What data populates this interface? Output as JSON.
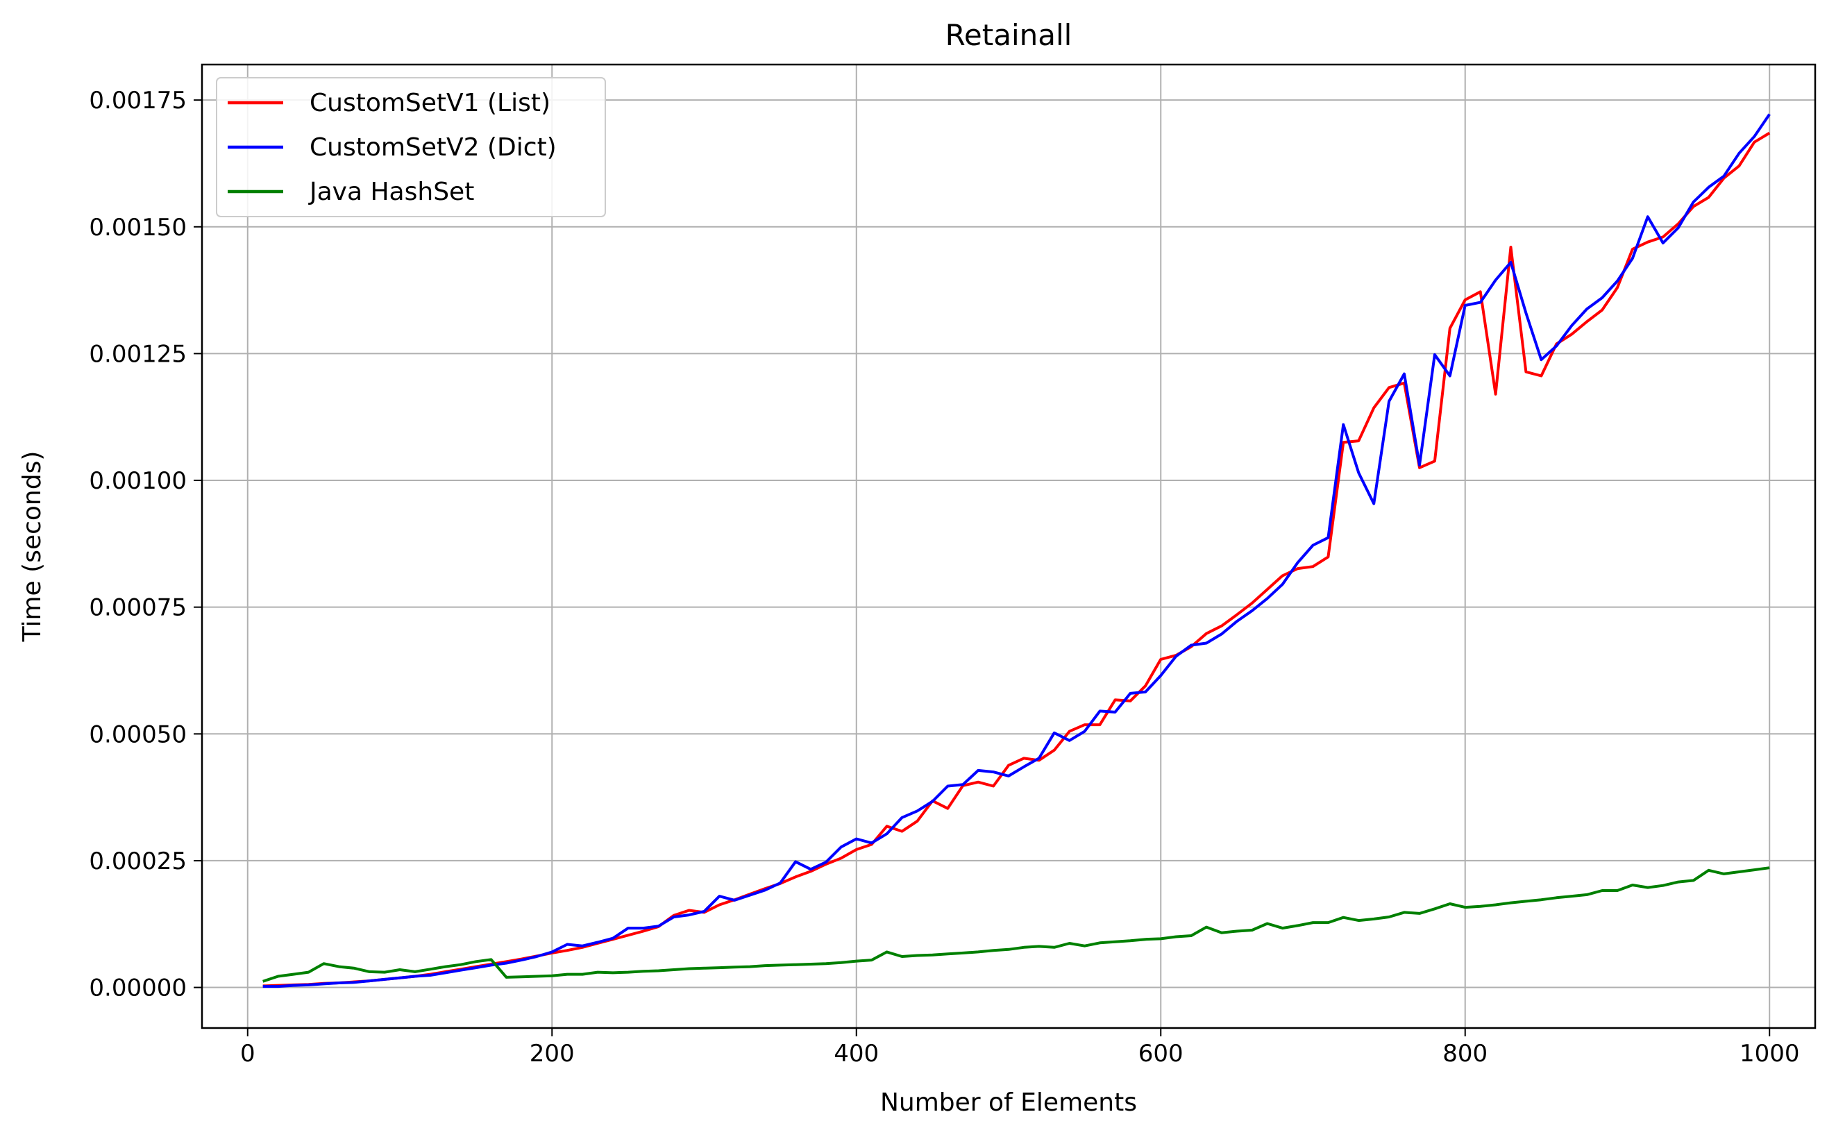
{
  "chart_data": {
    "type": "line",
    "title": "Retainall",
    "xlabel": "Number of Elements",
    "ylabel": "Time (seconds)",
    "xlim": [
      -30,
      1030
    ],
    "ylim": [
      -8e-05,
      0.00182
    ],
    "xticks": [
      0,
      200,
      400,
      600,
      800,
      1000
    ],
    "xtick_labels": [
      "0",
      "200",
      "400",
      "600",
      "800",
      "1000"
    ],
    "yticks": [
      0,
      0.00025,
      0.0005,
      0.00075,
      0.001,
      0.00125,
      0.0015,
      0.00175
    ],
    "ytick_labels": [
      "0.00000",
      "0.00025",
      "0.00050",
      "0.00075",
      "0.00100",
      "0.00125",
      "0.00150",
      "0.00175"
    ],
    "grid": true,
    "legend_position": "top-left",
    "x": [
      10,
      20,
      30,
      40,
      50,
      60,
      70,
      80,
      90,
      100,
      110,
      120,
      130,
      140,
      150,
      160,
      170,
      180,
      190,
      200,
      210,
      220,
      230,
      240,
      250,
      260,
      270,
      280,
      290,
      300,
      310,
      320,
      330,
      340,
      350,
      360,
      370,
      380,
      390,
      400,
      410,
      420,
      430,
      440,
      450,
      460,
      470,
      480,
      490,
      500,
      510,
      520,
      530,
      540,
      550,
      560,
      570,
      580,
      590,
      600,
      610,
      620,
      630,
      640,
      650,
      660,
      670,
      680,
      690,
      700,
      710,
      720,
      730,
      740,
      750,
      760,
      770,
      780,
      790,
      800,
      810,
      820,
      830,
      840,
      850,
      860,
      870,
      880,
      890,
      900,
      910,
      920,
      930,
      940,
      950,
      960,
      970,
      980,
      990,
      1000
    ],
    "series": [
      {
        "name": "CustomSetV1 (List)",
        "color": "#ff0000",
        "values": [
          3e-06,
          4e-06,
          5e-06,
          6e-06,
          8e-06,
          9e-06,
          1.1e-05,
          1.3e-05,
          1.6e-05,
          1.9e-05,
          2.2e-05,
          2.6e-05,
          3.1e-05,
          3.6e-05,
          4.1e-05,
          4.6e-05,
          5.1e-05,
          5.6e-05,
          6.2e-05,
          6.8e-05,
          7.3e-05,
          7.9e-05,
          8.7e-05,
          9.5e-05,
          0.000103,
          0.000111,
          0.00012,
          0.000142,
          0.000152,
          0.000148,
          0.000163,
          0.000173,
          0.000184,
          0.000195,
          0.000205,
          0.000218,
          0.000229,
          0.000243,
          0.000255,
          0.000272,
          0.000282,
          0.000318,
          0.000308,
          0.000328,
          0.000368,
          0.000353,
          0.000398,
          0.000405,
          0.000397,
          0.000438,
          0.000452,
          0.000448,
          0.000468,
          0.000505,
          0.000518,
          0.000518,
          0.000567,
          0.000565,
          0.000595,
          0.000647,
          0.000655,
          0.000672,
          0.000698,
          0.000713,
          0.000735,
          0.000758,
          0.000785,
          0.000812,
          0.000826,
          0.00083,
          0.000849,
          0.001075,
          0.001078,
          0.001143,
          0.001183,
          0.001192,
          0.001025,
          0.001038,
          0.0013,
          0.001356,
          0.001372,
          0.00117,
          0.00146,
          0.001214,
          0.001206,
          0.001269,
          0.001288,
          0.001313,
          0.001336,
          0.00138,
          0.001456,
          0.00147,
          0.00148,
          0.001506,
          0.00154,
          0.001558,
          0.001596,
          0.00162,
          0.001667,
          0.001685
        ]
      },
      {
        "name": "CustomSetV2 (Dict)",
        "color": "#0000ff",
        "values": [
          2e-06,
          2e-06,
          4e-06,
          5e-06,
          7e-06,
          9e-06,
          1e-05,
          1.3e-05,
          1.6e-05,
          1.9e-05,
          2.2e-05,
          2.4e-05,
          2.9e-05,
          3.4e-05,
          3.9e-05,
          4.4e-05,
          4.8e-05,
          5.4e-05,
          6.1e-05,
          7e-05,
          8.5e-05,
          8.2e-05,
          8.9e-05,
          9.7e-05,
          0.000117,
          0.000117,
          0.000121,
          0.000139,
          0.000143,
          0.00015,
          0.00018,
          0.000172,
          0.000182,
          0.000192,
          0.000206,
          0.000248,
          0.000233,
          0.000247,
          0.000277,
          0.000293,
          0.000285,
          0.000303,
          0.000335,
          0.000348,
          0.000367,
          0.000397,
          0.0004,
          0.000428,
          0.000425,
          0.000417,
          0.000435,
          0.000452,
          0.000502,
          0.000487,
          0.000505,
          0.000545,
          0.000543,
          0.00058,
          0.000583,
          0.000615,
          0.000653,
          0.000675,
          0.000679,
          0.000697,
          0.000722,
          0.000743,
          0.000767,
          0.000795,
          0.000838,
          0.000872,
          0.000887,
          0.00111,
          0.001015,
          0.000954,
          0.001156,
          0.00121,
          0.00103,
          0.001248,
          0.001206,
          0.001345,
          0.001351,
          0.001395,
          0.00143,
          0.00133,
          0.001238,
          0.001265,
          0.001305,
          0.001338,
          0.00136,
          0.001393,
          0.001438,
          0.00152,
          0.001468,
          0.001498,
          0.001549,
          0.001578,
          0.0016,
          0.001645,
          0.001678,
          0.001722
        ]
      },
      {
        "name": "Java HashSet",
        "color": "#008000",
        "values": [
          1.2e-05,
          2.2e-05,
          2.6e-05,
          3e-05,
          4.7e-05,
          4.1e-05,
          3.8e-05,
          3.1e-05,
          3e-05,
          3.5e-05,
          3.1e-05,
          3.6e-05,
          4.1e-05,
          4.5e-05,
          5.1e-05,
          5.5e-05,
          2e-05,
          2.1e-05,
          2.2e-05,
          2.3e-05,
          2.6e-05,
          2.6e-05,
          3e-05,
          2.9e-05,
          3e-05,
          3.2e-05,
          3.3e-05,
          3.5e-05,
          3.7e-05,
          3.8e-05,
          3.9e-05,
          4e-05,
          4.1e-05,
          4.3e-05,
          4.4e-05,
          4.5e-05,
          4.6e-05,
          4.7e-05,
          4.9e-05,
          5.2e-05,
          5.4e-05,
          7e-05,
          6.1e-05,
          6.3e-05,
          6.4e-05,
          6.6e-05,
          6.8e-05,
          7e-05,
          7.3e-05,
          7.5e-05,
          7.9e-05,
          8.1e-05,
          7.9e-05,
          8.7e-05,
          8.2e-05,
          8.8e-05,
          9e-05,
          9.2e-05,
          9.5e-05,
          9.6e-05,
          0.0001,
          0.000102,
          0.000119,
          0.000108,
          0.000111,
          0.000113,
          0.000126,
          0.000117,
          0.000122,
          0.000128,
          0.000128,
          0.000138,
          0.000132,
          0.000135,
          0.000139,
          0.000148,
          0.000146,
          0.000155,
          0.000165,
          0.000158,
          0.00016,
          0.000163,
          0.000167,
          0.00017,
          0.000173,
          0.000177,
          0.00018,
          0.000183,
          0.000191,
          0.000191,
          0.000202,
          0.000197,
          0.000201,
          0.000208,
          0.000211,
          0.000231,
          0.000224,
          0.000228,
          0.000232,
          0.000236
        ]
      }
    ]
  }
}
